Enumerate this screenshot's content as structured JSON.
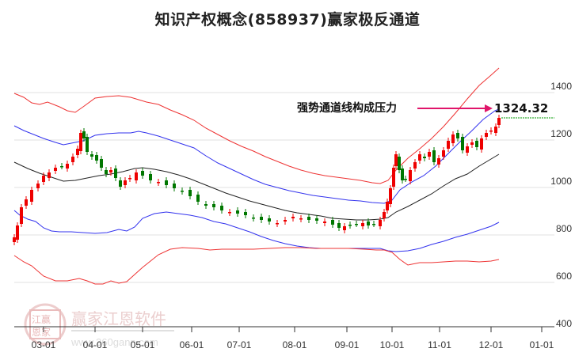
{
  "header": {
    "title": "知识产权概念(858937)赢家极反通道"
  },
  "annotation": {
    "text": "强势通道线构成压力",
    "value": "1324.32",
    "arrow_color": "#e0156a"
  },
  "watermark": {
    "brand": "赢家江恩软件",
    "url": "www.360gann.com",
    "seal": [
      "江",
      "赢",
      "恩",
      "家"
    ]
  },
  "colors": {
    "up": "#ee0000",
    "down": "#007700",
    "outer_band": "#ee3333",
    "inner_band": "#3333ee",
    "mid_line": "#222222",
    "last_price_line": "#009900"
  },
  "chart_data": {
    "type": "candlestick",
    "title": "知识产权概念(858937)赢家极反通道",
    "xlabel": "",
    "ylabel": "",
    "ylim": [
      400,
      1500
    ],
    "y_ticks": [
      1400,
      1200,
      1000,
      800,
      600,
      400
    ],
    "x_ticks": [
      "03-01",
      "04-01",
      "05-01",
      "06-01",
      "07-01",
      "08-01",
      "09-01",
      "10-01",
      "11-01",
      "12-01",
      "01-01"
    ],
    "grid": "horizontal",
    "last_price": 1324.32,
    "series": [
      {
        "name": "outer_upper",
        "color": "#ee3333",
        "x": [
          "02-20",
          "03-01",
          "03-20",
          "04-01",
          "04-20",
          "05-01",
          "05-20",
          "06-01",
          "07-01",
          "08-01",
          "09-01",
          "09-25",
          "10-01",
          "10-20",
          "11-01",
          "11-20",
          "12-01",
          "12-10"
        ],
        "values": [
          1360,
          1330,
          1290,
          1340,
          1345,
          1340,
          1310,
          1270,
          1200,
          1120,
          1060,
          1050,
          1070,
          1180,
          1270,
          1360,
          1420,
          1480
        ]
      },
      {
        "name": "inner_upper",
        "color": "#3333ee",
        "x": [
          "02-20",
          "03-01",
          "03-20",
          "04-01",
          "04-20",
          "05-01",
          "05-20",
          "06-01",
          "07-01",
          "08-01",
          "09-01",
          "09-25",
          "10-01",
          "10-20",
          "11-01",
          "11-20",
          "12-01",
          "12-10"
        ],
        "values": [
          1220,
          1190,
          1150,
          1200,
          1205,
          1210,
          1180,
          1140,
          1060,
          990,
          940,
          920,
          940,
          1020,
          1100,
          1180,
          1240,
          1310
        ]
      },
      {
        "name": "middle",
        "color": "#222222",
        "x": [
          "02-20",
          "03-01",
          "03-20",
          "04-01",
          "04-20",
          "05-01",
          "05-20",
          "06-01",
          "07-01",
          "08-01",
          "09-01",
          "09-25",
          "10-01",
          "10-20",
          "11-01",
          "11-20",
          "12-01",
          "12-10"
        ],
        "values": [
          1085,
          1040,
          1010,
          1040,
          1050,
          1060,
          1045,
          1010,
          940,
          880,
          840,
          835,
          860,
          920,
          980,
          1030,
          1080,
          1110
        ]
      },
      {
        "name": "inner_lower",
        "color": "#3333ee",
        "x": [
          "02-20",
          "03-01",
          "03-20",
          "04-01",
          "04-20",
          "05-01",
          "05-20",
          "06-01",
          "07-01",
          "08-01",
          "09-01",
          "09-25",
          "10-01",
          "10-20",
          "11-01",
          "11-20",
          "12-01",
          "12-10"
        ],
        "values": [
          860,
          810,
          790,
          805,
          800,
          820,
          860,
          860,
          810,
          760,
          730,
          720,
          710,
          730,
          760,
          790,
          820,
          850
        ]
      },
      {
        "name": "outer_lower",
        "color": "#ee3333",
        "x": [
          "02-20",
          "03-01",
          "03-20",
          "04-01",
          "04-20",
          "05-01",
          "05-20",
          "06-01",
          "07-01",
          "08-01",
          "09-01",
          "09-25",
          "10-01",
          "10-20",
          "11-01",
          "11-20",
          "12-01",
          "12-10"
        ],
        "values": [
          720,
          660,
          580,
          590,
          570,
          590,
          660,
          680,
          670,
          665,
          660,
          650,
          590,
          580,
          590,
          600,
          595,
          610
        ]
      }
    ],
    "candles_summary": "Daily candles from ~760 (late Feb) rising to peak ~1250 (early Apr), declining to ~790 (late Sep), breakout to ~1220 (early Oct), rising to last close 1324.32 (mid Dec)"
  }
}
